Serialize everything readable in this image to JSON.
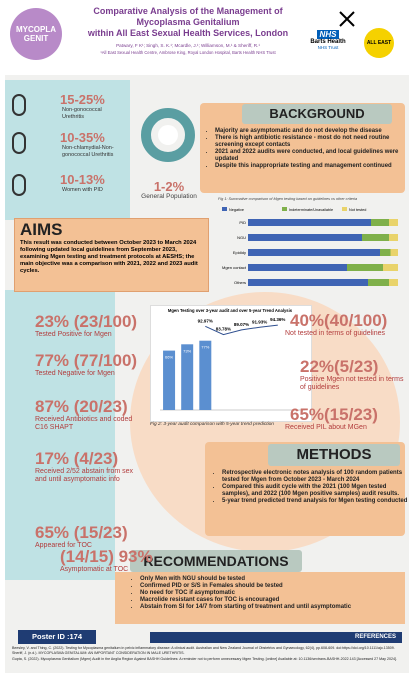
{
  "header": {
    "logo_left": "MYCOPLA GENIT",
    "title_lines": [
      "Comparative Analysis of the Management of",
      "Mycoplasma Genitalium",
      "within All East Sexual Health Services, London"
    ],
    "authors": "Patwary, F K¹; Singh, S. K.¹; Mcardle, J.¹; Williamson, M.¹ & Sheriff, R.¹",
    "affiliation": "¹All East Sexual Health Centre, Ambrose King, Royal London Hospital, Barts Health NHS Trust",
    "nhs": "NHS",
    "trust_name": "Barts Health",
    "trust_sub": "NHS Trust",
    "logo_right": "ALL EAST"
  },
  "prevalence": [
    {
      "value": "15-25%",
      "label": "Non-gonococcal Urethritis"
    },
    {
      "value": "10-35%",
      "label": "Non-chlamydial-Non-gonococcal Urethritis"
    },
    {
      "value": "10-13%",
      "label": "Women with PID"
    }
  ],
  "general": {
    "value": "1-2%",
    "label": "General Population"
  },
  "background": {
    "title": "BACKGROUND",
    "bullets": [
      "Majority are asymptomatic and do not develop the disease",
      "There is high antibiotic resistance - most do not need routine screening except contacts",
      "2021 and 2022 audits were conducted, and local guidelines were updated",
      "Despite this inappropriate testing and management continued"
    ]
  },
  "fig1": {
    "caption": "Fig 1: Summative comparison of Mgen testing based on guidelines vs other criteria",
    "rows": [
      "PID",
      "NGU",
      "Epididy",
      "Mgen contact",
      "Others"
    ],
    "series": [
      {
        "name": "Negative",
        "color": "#3f64b4",
        "values": [
          82,
          76,
          88,
          66,
          80
        ]
      },
      {
        "name": "Indeterminate/Unavailable",
        "color": "#7fb04a",
        "values": [
          12,
          18,
          7,
          24,
          14
        ]
      },
      {
        "name": "Not tested",
        "color": "#e9d36a",
        "values": [
          6,
          6,
          5,
          10,
          6
        ]
      }
    ]
  },
  "aims": {
    "title": "AIMS",
    "text": "This result was conducted between October 2023 to March 2024 following updated local guidelines from September 2023, examining Mgen testing and treatment protocols at AESHS; the main objective was a comparison with 2021, 2022 and 2023 audit cycles."
  },
  "results_left": [
    {
      "value": "23% (23/100)",
      "label": "Tested Positive for Mgen"
    },
    {
      "value": "77% (77/100)",
      "label": "Tested Negative for Mgen"
    },
    {
      "value": "87% (20/23)",
      "label": "Received Antibiotics and coded C16 SHAPT"
    },
    {
      "value": "17% (4/23)",
      "label": "Received 2/52 abstain from sex and until asymptomatic info"
    },
    {
      "value": "65% (15/23)",
      "label": "Appeared for TOC"
    },
    {
      "value": "(14/15) 93%",
      "label": "Asymptomatic at TOC"
    }
  ],
  "results_right": [
    {
      "value": "40%(40/100)",
      "label": "Not tested in terms of guidelines"
    },
    {
      "value": "22%(5/23)",
      "label": "Positive Mgen not tested in terms of guidelines"
    },
    {
      "value": "65%(15/23)",
      "label": "Received PIL about MGen"
    }
  ],
  "fig2": {
    "title": "Mgen Testing over 3-year audit and over 5-year Trend Analysis",
    "caption": "Fig 2: 3-year audit comparison with 5-year trend prediction",
    "xlim": [
      2020.5,
      2028.5
    ],
    "ylim": [
      0,
      100
    ],
    "bars": {
      "x": [
        2021,
        2022,
        2023
      ],
      "values": [
        66,
        73,
        77
      ],
      "value_labels": [
        "66%",
        "73%",
        "77%"
      ],
      "color": "#5b8fd0"
    },
    "line": {
      "x": [
        2023,
        2024,
        2025,
        2026,
        2027
      ],
      "values": [
        92.97,
        83.78,
        89.07,
        91.93,
        94.36
      ],
      "value_labels": [
        "92.97%",
        "83.78%",
        "89.07%",
        "91.93%",
        "94.36%"
      ],
      "color": "#2f4f8f"
    }
  },
  "methods": {
    "title": "METHODS",
    "bullets": [
      "Retrospective electronic notes analysis of 100 random patients tested for Mgen from October 2023 - March 2024",
      "Compared this audit cycle with the 2021 (100 Mgen tested samples), and 2022 (100 Mgen positive samples) audit results.",
      "5-year trend predicted trend analysis for Mgen testing conducted"
    ]
  },
  "recommendations": {
    "title": "RECOMMENDATIONS",
    "bullets": [
      "Only Men with NGU should be tested",
      "Confirmed PID or S/S in Females should be tested",
      "No need for TOC if asymptomatic",
      "Macrolide resistant cases for TOC is encouraged",
      "Abstain from SI for 14/7 from starting of treatment and until asymptomatic"
    ]
  },
  "poster_id": "Poster ID :174",
  "references": {
    "title": "REFERENCES",
    "items": [
      "Beesley, V. and Thing, C. (2022). Testing for Mycoplasma genitalium in pelvic inflammatory disease: A clinical audit. Australian and New Zealand Journal of Obstetrics and Gynaecology, 62(4), pp.608-609. doi:https://doi.org/10.1111/ajo.13509.",
      "Sheriff, J. (n.d.). MYCOPLASMA GENITALIUM: AN IMPORTANT CONSIDERATION IN MALE URETHRITIS.",
      "Gupta, S. (2022). Mycoplasma Genitalium (Mgen) Audit in the Anglia Region Against BASHH Guidelines: A reminder not to perform unnecessary Mgen Testing. [online] Available at: 10.1136/sextrans-BASHH-2022.143 [Accessed 27 May 2024]."
    ]
  }
}
